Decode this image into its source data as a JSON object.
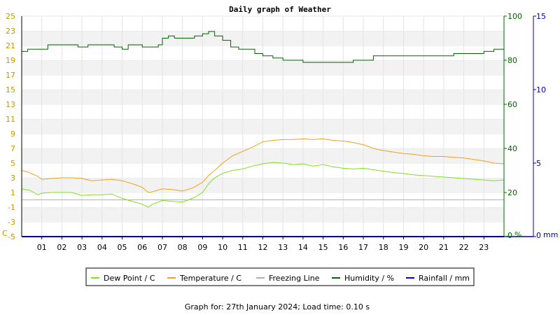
{
  "chart_data": {
    "type": "line",
    "title": "Daily graph of Weather",
    "x_ticks": [
      "01",
      "02",
      "03",
      "04",
      "05",
      "06",
      "07",
      "08",
      "09",
      "10",
      "11",
      "12",
      "13",
      "14",
      "15",
      "16",
      "17",
      "18",
      "19",
      "20",
      "21",
      "22",
      "23"
    ],
    "xlim": [
      0,
      24
    ],
    "left_axis": {
      "unit": "C",
      "ticks": [
        -5,
        -3,
        -1,
        1,
        3,
        5,
        7,
        9,
        11,
        13,
        15,
        17,
        19,
        21,
        23,
        25
      ],
      "ylim": [
        -5,
        25
      ],
      "color": "#c89600"
    },
    "humidity_axis": {
      "unit": "%",
      "ticks": [
        0,
        20,
        40,
        60,
        80,
        100
      ],
      "ylim": [
        0,
        100
      ],
      "color": "#006400"
    },
    "rain_axis": {
      "unit": "mm",
      "ticks": [
        0,
        5,
        10,
        15
      ],
      "ylim": [
        0,
        15
      ],
      "color": "#0000aa"
    },
    "grid": true,
    "series": [
      {
        "name": "Dew Point / C",
        "color": "#7fe01e",
        "x": [
          0,
          0.4,
          0.8,
          1.0,
          1.5,
          2.0,
          2.5,
          3.0,
          3.5,
          4.0,
          4.5,
          5.0,
          5.5,
          6.0,
          6.3,
          6.5,
          7.0,
          7.5,
          8.0,
          8.5,
          9.0,
          9.3,
          9.6,
          10.0,
          10.5,
          11.0,
          11.5,
          12.0,
          12.5,
          13.0,
          13.5,
          14.0,
          14.5,
          15.0,
          15.5,
          16.0,
          16.5,
          17.0,
          17.5,
          18.0,
          18.5,
          19.0,
          19.5,
          20.0,
          20.5,
          21.0,
          21.5,
          22.0,
          22.5,
          23.0,
          23.5,
          24.0
        ],
        "y": [
          1.5,
          1.3,
          0.7,
          0.9,
          1.0,
          1.0,
          1.0,
          0.6,
          0.7,
          0.7,
          0.8,
          0.2,
          -0.2,
          -0.6,
          -1.0,
          -0.6,
          -0.1,
          -0.2,
          -0.3,
          0.2,
          1.0,
          2.2,
          3.0,
          3.6,
          4.0,
          4.2,
          4.6,
          4.9,
          5.1,
          5.0,
          4.8,
          4.9,
          4.6,
          4.8,
          4.5,
          4.3,
          4.2,
          4.3,
          4.1,
          3.9,
          3.7,
          3.6,
          3.4,
          3.3,
          3.2,
          3.1,
          3.0,
          2.9,
          2.8,
          2.7,
          2.6,
          2.7
        ]
      },
      {
        "name": "Temperature / C",
        "color": "#f0a01e",
        "x": [
          0,
          0.3,
          0.8,
          1.0,
          1.5,
          2.0,
          2.5,
          3.0,
          3.5,
          4.0,
          4.5,
          5.0,
          5.5,
          6.0,
          6.3,
          6.5,
          7.0,
          7.5,
          8.0,
          8.5,
          9.0,
          9.3,
          9.6,
          10.0,
          10.5,
          11.0,
          11.5,
          12.0,
          12.5,
          13.0,
          13.5,
          14.0,
          14.5,
          15.0,
          15.5,
          16.0,
          16.5,
          17.0,
          17.5,
          18.0,
          18.5,
          19.0,
          19.5,
          20.0,
          20.5,
          21.0,
          21.5,
          22.0,
          22.5,
          23.0,
          23.5,
          24.0
        ],
        "y": [
          4.0,
          3.8,
          3.2,
          2.8,
          2.9,
          3.0,
          3.0,
          2.9,
          2.6,
          2.7,
          2.8,
          2.6,
          2.2,
          1.7,
          1.0,
          1.1,
          1.5,
          1.4,
          1.2,
          1.6,
          2.4,
          3.3,
          4.0,
          5.0,
          6.0,
          6.6,
          7.2,
          7.9,
          8.1,
          8.2,
          8.2,
          8.3,
          8.2,
          8.3,
          8.1,
          8.0,
          7.8,
          7.5,
          7.0,
          6.7,
          6.5,
          6.3,
          6.2,
          6.0,
          5.9,
          5.9,
          5.8,
          5.7,
          5.5,
          5.3,
          5.0,
          4.9
        ]
      },
      {
        "name": "Freezing Line",
        "color": "#a0b4c8",
        "x": [
          0,
          24
        ],
        "y": [
          0,
          0
        ]
      },
      {
        "name": "Humidity / %",
        "color": "#006400",
        "axis": "humidity",
        "x": [
          0,
          0.3,
          1.0,
          1.3,
          1.8,
          2.5,
          2.8,
          3.3,
          3.8,
          4.2,
          4.6,
          5.0,
          5.3,
          5.7,
          6.0,
          6.4,
          6.8,
          7.0,
          7.3,
          7.6,
          7.9,
          8.2,
          8.6,
          9.0,
          9.3,
          9.6,
          10.0,
          10.4,
          10.8,
          11.2,
          11.6,
          12.0,
          12.5,
          13.0,
          13.5,
          14.0,
          14.5,
          15.0,
          15.5,
          16.0,
          16.5,
          17.0,
          17.5,
          18.0,
          18.5,
          19.0,
          19.5,
          20.0,
          20.5,
          21.0,
          21.5,
          22.0,
          22.5,
          23.0,
          23.5,
          24.0
        ],
        "y": [
          84,
          85,
          85,
          87,
          87,
          87,
          86,
          87,
          87,
          87,
          86,
          85,
          87,
          87,
          86,
          86,
          87,
          90,
          91,
          90,
          90,
          90,
          91,
          92,
          93,
          91,
          89,
          86,
          85,
          85,
          83,
          82,
          81,
          80,
          80,
          79,
          79,
          79,
          79,
          79,
          80,
          80,
          82,
          82,
          82,
          82,
          82,
          82,
          82,
          82,
          83,
          83,
          83,
          84,
          85,
          85
        ]
      },
      {
        "name": "Rainfall / mm",
        "color": "#0000cc",
        "axis": "rain",
        "x": [
          0,
          24
        ],
        "y": [
          0,
          0
        ]
      }
    ],
    "footer": "Graph for: 27th January 2024; Load time: 0.10 s"
  }
}
